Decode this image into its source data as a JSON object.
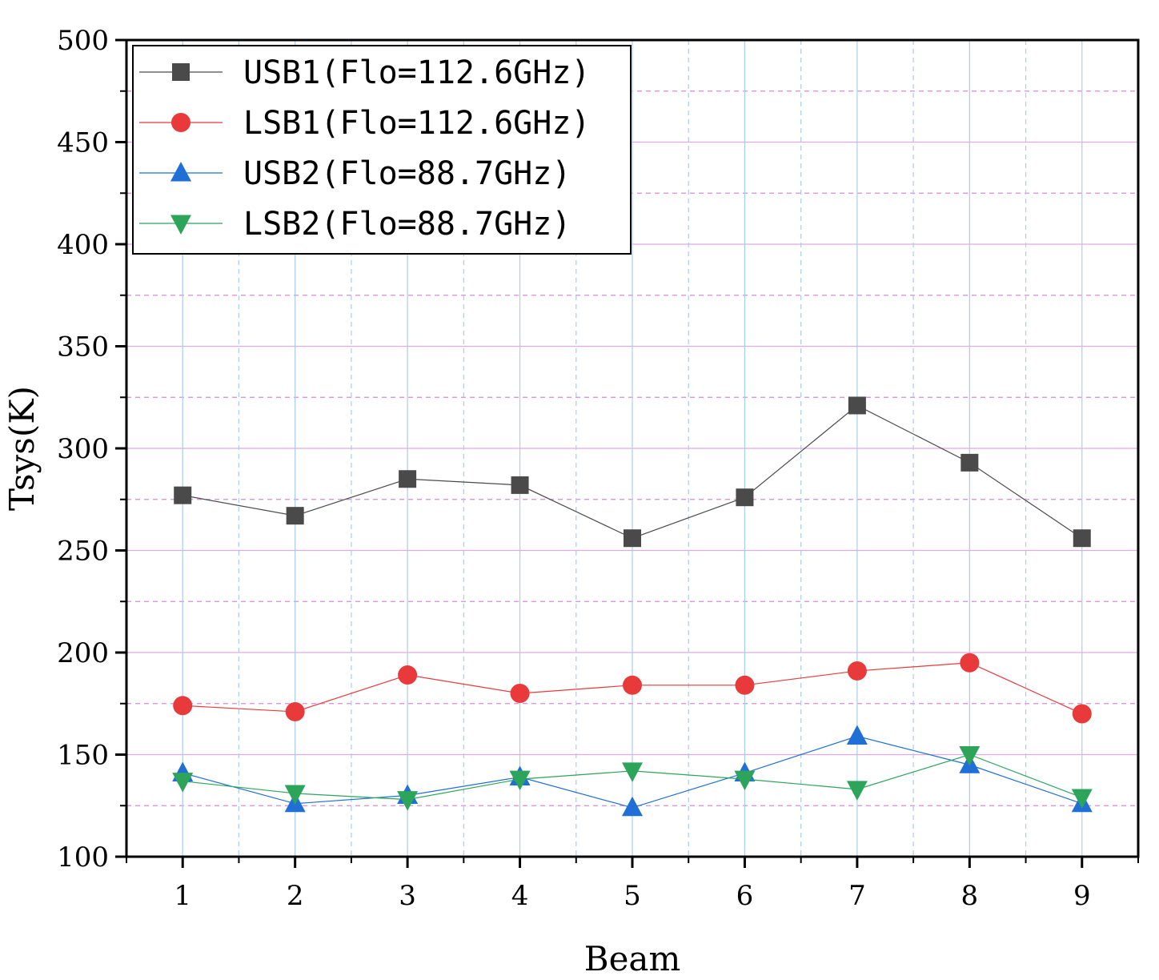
{
  "chart_data": {
    "type": "line",
    "xlabel": "Beam",
    "ylabel": "Tsys(K)",
    "x": [
      1,
      2,
      3,
      4,
      5,
      6,
      7,
      8,
      9
    ],
    "xlim": [
      0.5,
      9.5
    ],
    "ylim": [
      100,
      500
    ],
    "y_ticks": [
      100,
      150,
      200,
      250,
      300,
      350,
      400,
      450,
      500
    ],
    "x_ticks": [
      1,
      2,
      3,
      4,
      5,
      6,
      7,
      8,
      9
    ],
    "grid": true,
    "legend_position": "top-left",
    "series": [
      {
        "name": "USB1(Flo=112.6GHz)",
        "color": "#4a4a4a",
        "marker": "square",
        "values": [
          277,
          267,
          285,
          282,
          256,
          276,
          321,
          293,
          256
        ]
      },
      {
        "name": "LSB1(Flo=112.6GHz)",
        "color": "#e8393b",
        "marker": "circle",
        "values": [
          174,
          171,
          189,
          180,
          184,
          184,
          191,
          195,
          170
        ]
      },
      {
        "name": "USB2(Flo=88.7GHz)",
        "color": "#1f6fd6",
        "marker": "triangle-up",
        "values": [
          141,
          126,
          130,
          139,
          124,
          141,
          159,
          145,
          126
        ]
      },
      {
        "name": "LSB2(Flo=88.7GHz)",
        "color": "#2ca55a",
        "marker": "triangle-down",
        "values": [
          137,
          131,
          128,
          138,
          142,
          138,
          133,
          150,
          129
        ]
      }
    ]
  }
}
